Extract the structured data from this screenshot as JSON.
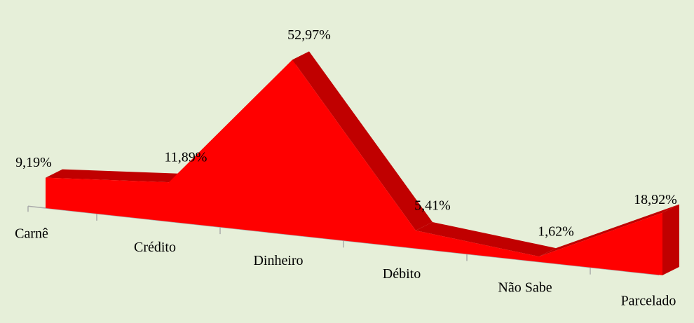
{
  "chart_data": {
    "type": "area3d",
    "categories": [
      "Carnê",
      "Crédito",
      "Dinheiro",
      "Débito",
      "Não Sabe",
      "Parcelado"
    ],
    "values": [
      9.19,
      11.89,
      52.97,
      5.41,
      1.62,
      18.92
    ],
    "value_labels": [
      "9,19%",
      "11,89%",
      "52,97%",
      "5,41%",
      "1,62%",
      "18,92%"
    ],
    "color": "#ff0000"
  }
}
